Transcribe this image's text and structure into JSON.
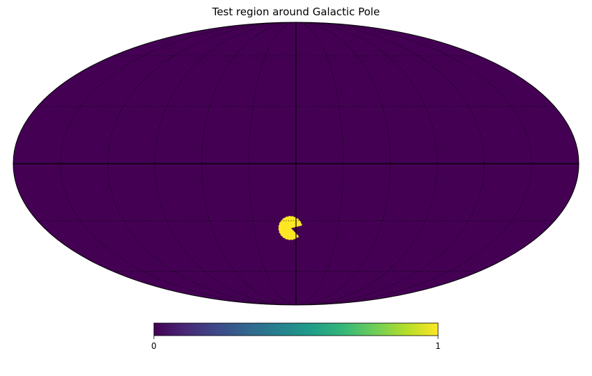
{
  "chart_data": {
    "type": "heatmap",
    "projection": "mollweide",
    "title": "Test region around Galactic Pole",
    "colormap": "viridis",
    "colormap_stops": [
      "#440154",
      "#482878",
      "#3e4989",
      "#31688e",
      "#26828e",
      "#1f9e89",
      "#35b779",
      "#6ece58",
      "#b5de2b",
      "#fde725"
    ],
    "background_value": 0,
    "background_color": "#440154",
    "region_value": 1,
    "region_color": "#fde725",
    "region": {
      "center_lon_deg": 4,
      "center_lat_deg": -34,
      "radius_deg": 7.5,
      "notch_lon_deg": -5,
      "notch_lat_deg": -36,
      "notch_half_angle_deg": 30
    },
    "graticule": {
      "lon_step_deg": 30,
      "lat_step_deg": 30,
      "style": "dotted"
    },
    "colorbar": {
      "min": 0,
      "max": 1,
      "ticks": [
        "0",
        "1"
      ],
      "orientation": "horizontal",
      "placement": "bottom"
    }
  }
}
